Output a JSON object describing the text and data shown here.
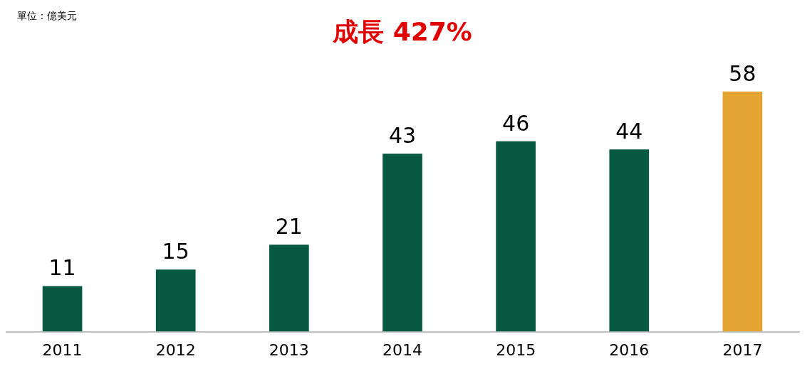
{
  "chart_data": {
    "type": "bar",
    "title": "成長 427%",
    "annotations": [
      "單位：億美元"
    ],
    "categories": [
      "2011",
      "2012",
      "2013",
      "2014",
      "2015",
      "2016",
      "2017"
    ],
    "values": [
      11,
      15,
      21,
      43,
      46,
      44,
      58
    ],
    "colors": [
      "#085941",
      "#085941",
      "#085941",
      "#085941",
      "#085941",
      "#085941",
      "#e3a433"
    ],
    "data_labels": true,
    "grid": false,
    "legend": false
  }
}
